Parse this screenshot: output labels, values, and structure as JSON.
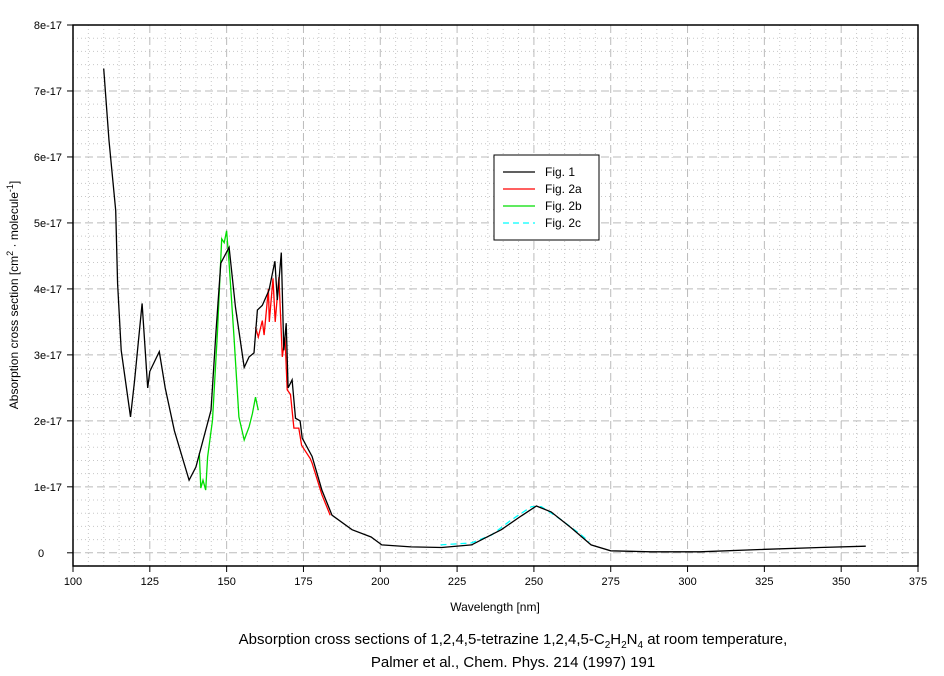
{
  "chart_data": {
    "type": "line",
    "title": "",
    "xlabel": "Wavelength [nm]",
    "ylabel": {
      "main": "Absorption cross section [cm",
      "sup1": "2",
      "mid": " · molecule",
      "sup2": "-1",
      "end": "]"
    },
    "xlim": [
      100,
      375
    ],
    "ylim": [
      -2e-18,
      8e-17
    ],
    "xticks": [
      100,
      125,
      150,
      175,
      200,
      225,
      250,
      275,
      300,
      325,
      350,
      375
    ],
    "xtick_labels": [
      "100",
      "125",
      "150",
      "175",
      "200",
      "225",
      "250",
      "275",
      "300",
      "325",
      "350",
      "375"
    ],
    "yticks": [
      0,
      1e-17,
      2e-17,
      3e-17,
      4e-17,
      5e-17,
      6e-17,
      7e-17,
      8e-17
    ],
    "ytick_labels": [
      "0",
      "1e-17",
      "2e-17",
      "3e-17",
      "4e-17",
      "5e-17",
      "6e-17",
      "7e-17",
      "8e-17"
    ],
    "grid": true,
    "legend_position": "upper-center",
    "series": [
      {
        "name": "Fig. 1",
        "color": "#000000",
        "dash": false,
        "x": [
          110,
          111.7,
          113.9,
          114.5,
          115.7,
          118.7,
          120,
          122.5,
          124.3,
          125,
          128.1,
          130,
          133,
          137.8,
          140,
          144.9,
          146.5,
          148.1,
          150.8,
          152.9,
          155.7,
          157.3,
          158.9,
          160,
          161.6,
          163.8,
          165.7,
          166.5,
          167.8,
          168.6,
          169.4,
          170,
          171.3,
          172.4,
          173.9,
          174.6,
          177.8,
          181,
          184.3,
          190.8,
          197,
          200.5,
          210,
          220,
          229.7,
          239.4,
          245.9,
          250.8,
          255.6,
          262.1,
          268.6,
          275,
          288,
          304,
          323.7,
          343,
          358
        ],
        "y": [
          7.34e-17,
          6.25e-17,
          5.19e-17,
          4.08e-17,
          3.07e-17,
          2.06e-17,
          2.6e-17,
          3.78e-17,
          2.5e-17,
          2.75e-17,
          3.05e-17,
          2.5e-17,
          1.85e-17,
          1.1e-17,
          1.3e-17,
          2.16e-17,
          3.33e-17,
          4.39e-17,
          4.63e-17,
          3.72e-17,
          2.81e-17,
          2.97e-17,
          3.03e-17,
          3.68e-17,
          3.75e-17,
          3.98e-17,
          4.42e-17,
          3.83e-17,
          4.55e-17,
          3.07e-17,
          3.48e-17,
          2.5e-17,
          2.62e-17,
          2.04e-17,
          2e-17,
          1.74e-17,
          1.46e-17,
          9.5e-18,
          5.7e-18,
          3.5e-18,
          2.4e-18,
          1.2e-18,
          9e-19,
          8e-19,
          1.2e-18,
          3.5e-18,
          5.6e-18,
          7.1e-18,
          6.2e-18,
          3.8e-18,
          1.2e-18,
          3e-19,
          1.5e-19,
          1.5e-19,
          5e-19,
          8e-19,
          1e-18
        ]
      },
      {
        "name": "Fig. 2a",
        "color": "#ff0000",
        "dash": false,
        "x": [
          159.4,
          160.3,
          161.6,
          162.2,
          163.6,
          163.9,
          165.1,
          165.8,
          167,
          168.1,
          169,
          169.7,
          170.8,
          171.9,
          173.5,
          174.4,
          177.2,
          177.8,
          181,
          183.7
        ],
        "y": [
          3.42e-17,
          3.27e-17,
          3.52e-17,
          3.3e-17,
          4e-17,
          3.5e-17,
          4.16e-17,
          3.5e-17,
          4.18e-17,
          2.97e-17,
          3.27e-17,
          2.47e-17,
          2.4e-17,
          1.89e-17,
          1.89e-17,
          1.63e-17,
          1.43e-17,
          1.36e-17,
          8.8e-18,
          5.7e-18
        ]
      },
      {
        "name": "Fig. 2b",
        "color": "#00dd00",
        "dash": false,
        "x": [
          141.1,
          141.6,
          142.3,
          143.2,
          143.8,
          145.4,
          147,
          148.4,
          149.2,
          150,
          150.8,
          152.4,
          154,
          155.7,
          157.3,
          158.4,
          159.4,
          160.3
        ],
        "y": [
          1.51e-17,
          9.8e-18,
          1.1e-17,
          9.5e-18,
          1.45e-17,
          2.01e-17,
          3.33e-17,
          4.76e-17,
          4.7e-17,
          4.88e-17,
          4.39e-17,
          3.27e-17,
          2.06e-17,
          1.71e-17,
          1.91e-17,
          2.11e-17,
          2.36e-17,
          2.16e-17
        ]
      },
      {
        "name": "Fig. 2c",
        "color": "#00ffff",
        "dash": true,
        "x": [
          219.6,
          229.7,
          236.2,
          242.7,
          249.2,
          252.4,
          258.9,
          265.4,
          268
        ],
        "y": [
          1.2e-18,
          1.5e-18,
          2.7e-18,
          5e-18,
          7e-18,
          7e-18,
          5e-18,
          2.7e-18,
          1.7e-18
        ]
      }
    ]
  },
  "caption": {
    "line1_a": "Absorption cross sections of 1,2,4,5-tetrazine 1,2,4,5-C",
    "sub1": "2",
    "h": "H",
    "sub2": "2",
    "n": "N",
    "sub3": "4",
    "line1_b": " at room temperature,",
    "line2": "Palmer et al., Chem. Phys. 214 (1997) 191"
  }
}
